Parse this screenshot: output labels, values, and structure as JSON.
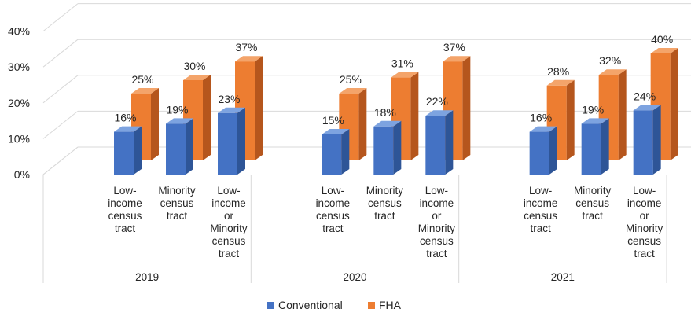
{
  "chart_data": {
    "type": "bar",
    "title": "",
    "xlabel": "",
    "ylabel": "",
    "ylim": [
      0,
      40
    ],
    "y_ticks": [
      "0%",
      "10%",
      "20%",
      "30%",
      "40%"
    ],
    "grid": true,
    "legend_position": "bottom",
    "style": "3d-clustered-column",
    "colors": {
      "Conventional": "#4472C4",
      "FHA": "#ED7D31"
    },
    "groups": [
      {
        "label": "2019",
        "categories": [
          [
            "Low-",
            "income",
            "census",
            "tract"
          ],
          [
            "Minority",
            "census",
            "tract"
          ],
          [
            "Low-",
            "income",
            "or",
            "Minority",
            "census",
            "tract"
          ]
        ],
        "series": [
          {
            "name": "Conventional",
            "values": [
              16,
              19,
              23
            ],
            "labels": [
              "16%",
              "19%",
              "23%"
            ]
          },
          {
            "name": "FHA",
            "values": [
              25,
              30,
              37
            ],
            "labels": [
              "25%",
              "30%",
              "37%"
            ]
          }
        ]
      },
      {
        "label": "2020",
        "categories": [
          [
            "Low-",
            "income",
            "census",
            "tract"
          ],
          [
            "Minority",
            "census",
            "tract"
          ],
          [
            "Low-",
            "income",
            "or",
            "Minority",
            "census",
            "tract"
          ]
        ],
        "series": [
          {
            "name": "Conventional",
            "values": [
              15,
              18,
              22
            ],
            "labels": [
              "15%",
              "18%",
              "22%"
            ]
          },
          {
            "name": "FHA",
            "values": [
              25,
              31,
              37
            ],
            "labels": [
              "25%",
              "31%",
              "37%"
            ]
          }
        ]
      },
      {
        "label": "2021",
        "categories": [
          [
            "Low-",
            "income",
            "census",
            "tract"
          ],
          [
            "Minority",
            "census",
            "tract"
          ],
          [
            "Low-",
            "income",
            "or",
            "Minority",
            "census",
            "tract"
          ]
        ],
        "series": [
          {
            "name": "Conventional",
            "values": [
              16,
              19,
              24
            ],
            "labels": [
              "16%",
              "19%",
              "24%"
            ]
          },
          {
            "name": "FHA",
            "values": [
              28,
              32,
              40
            ],
            "labels": [
              "28%",
              "32%",
              "40%"
            ]
          }
        ]
      }
    ],
    "legend": [
      "Conventional",
      "FHA"
    ]
  }
}
